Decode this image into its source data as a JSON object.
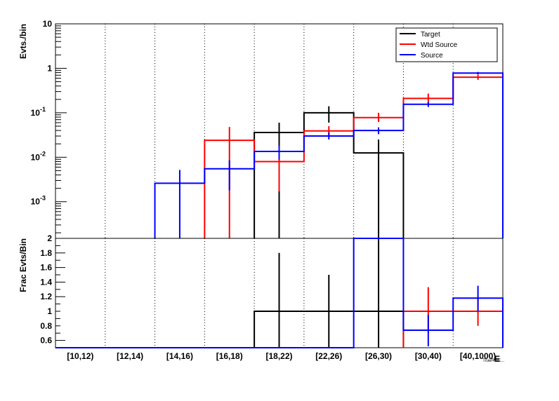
{
  "chart_data": [
    {
      "type": "histogram",
      "panel": "top",
      "ylabel": "Evts./bin",
      "yscale": "log",
      "ylim": [
        0.00015,
        10
      ],
      "y_ticks": [
        {
          "value": 10,
          "label": "10",
          "exp": ""
        },
        {
          "value": 1,
          "label": "1",
          "exp": ""
        },
        {
          "value": 0.1,
          "label": "10",
          "exp": "-1"
        },
        {
          "value": 0.01,
          "label": "10",
          "exp": "-2"
        },
        {
          "value": 0.001,
          "label": "10",
          "exp": "-3"
        }
      ],
      "categories": [
        "[10,12)",
        "[12,14)",
        "[14,16)",
        "[16,18)",
        "[18,22)",
        "[22,26)",
        "[26,30)",
        "[30,40)",
        "[40,1000)"
      ],
      "legend": {
        "placement": "top-right",
        "entries": [
          "Target",
          "Wtd Source",
          "Source"
        ]
      },
      "series": [
        {
          "name": "Target",
          "color": "#000000",
          "values": [
            null,
            null,
            null,
            null,
            0.036,
            0.1,
            0.0125,
            null,
            null
          ],
          "err_low": [
            null,
            null,
            null,
            null,
            0.00015,
            0.06,
            0.00015,
            null,
            null
          ],
          "err_high": [
            null,
            null,
            null,
            null,
            0.06,
            0.14,
            0.025,
            null,
            null
          ]
        },
        {
          "name": "Wtd Source",
          "color": "#ff0000",
          "values": [
            null,
            null,
            null,
            0.024,
            0.008,
            0.039,
            0.078,
            0.21,
            0.63
          ],
          "err_low": [
            null,
            null,
            null,
            0.00015,
            0.0017,
            0.029,
            0.062,
            0.155,
            0.55
          ],
          "err_high": [
            null,
            null,
            null,
            0.048,
            0.015,
            0.05,
            0.1,
            0.27,
            0.72
          ]
        },
        {
          "name": "Source",
          "color": "#0000ff",
          "values": [
            null,
            null,
            0.0026,
            0.0055,
            0.0135,
            0.03,
            0.04,
            0.155,
            0.78
          ],
          "err_low": [
            null,
            null,
            0.00015,
            0.0018,
            0.0088,
            0.025,
            0.033,
            0.135,
            0.73
          ],
          "err_high": [
            null,
            null,
            0.0052,
            0.0085,
            0.018,
            0.036,
            0.047,
            0.175,
            0.83
          ]
        }
      ]
    },
    {
      "type": "histogram",
      "panel": "bottom",
      "ylabel": "Frac Evts/Bin",
      "xlabel": "E",
      "xlabel_sub": "TrueFullE...",
      "ylim": [
        0.5,
        2
      ],
      "y_ticks": [
        {
          "value": 2,
          "label": "2"
        },
        {
          "value": 1.8,
          "label": "1.8"
        },
        {
          "value": 1.6,
          "label": "1.6"
        },
        {
          "value": 1.4,
          "label": "1.4"
        },
        {
          "value": 1.2,
          "label": "1.2"
        },
        {
          "value": 1,
          "label": "1"
        },
        {
          "value": 0.8,
          "label": "0.8"
        },
        {
          "value": 0.6,
          "label": "0.6"
        }
      ],
      "categories": [
        "[10,12)",
        "[12,14)",
        "[14,16)",
        "[16,18)",
        "[18,22)",
        "[22,26)",
        "[26,30)",
        "[30,40)",
        "[40,1000)"
      ],
      "series": [
        {
          "name": "Target",
          "color": "#000000",
          "values": [
            0.5,
            0.5,
            0.5,
            0.5,
            1.0,
            1.0,
            1.0,
            null,
            null
          ],
          "err_low": [
            null,
            null,
            null,
            null,
            0.5,
            0.5,
            0.5,
            null,
            null
          ],
          "err_high": [
            null,
            null,
            null,
            null,
            1.8,
            1.5,
            2.0,
            null,
            null
          ]
        },
        {
          "name": "Wtd Source",
          "color": "#ff0000",
          "values": [
            null,
            null,
            null,
            null,
            null,
            null,
            null,
            1.0,
            1.0
          ],
          "err_low": [
            null,
            null,
            null,
            null,
            null,
            null,
            null,
            0.7,
            0.8
          ],
          "err_high": [
            null,
            null,
            null,
            null,
            null,
            null,
            null,
            1.33,
            1.2
          ]
        },
        {
          "name": "Source",
          "color": "#0000ff",
          "values": [
            0.5,
            0.5,
            0.5,
            0.5,
            0.5,
            0.5,
            2.0,
            0.74,
            1.18
          ],
          "err_low": [
            null,
            null,
            null,
            null,
            null,
            null,
            null,
            0.52,
            1.0
          ],
          "err_high": [
            null,
            null,
            null,
            null,
            null,
            null,
            null,
            0.95,
            1.35
          ]
        }
      ]
    }
  ]
}
